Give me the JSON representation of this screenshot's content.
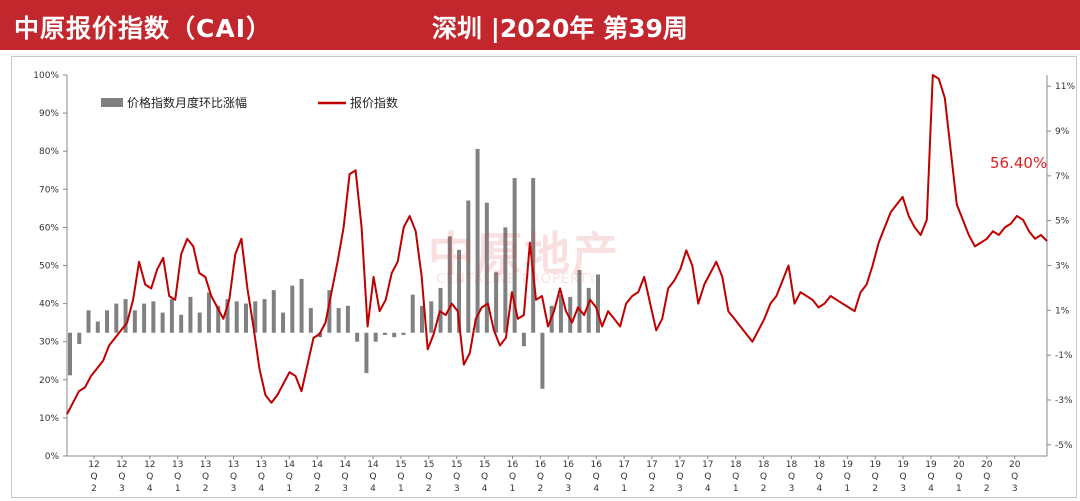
{
  "header": {
    "title": "中原报价指数（CAI）",
    "subtitle": "深圳 |2020年  第39周",
    "color": "#c1272d"
  },
  "watermark": {
    "text": "中原地产",
    "sub": "CENTALINE PROPERTY"
  },
  "chart_data": {
    "type": "bar+line",
    "legend": [
      "价格指数月度环比涨幅",
      "报价指数"
    ],
    "legend_position": "top-left",
    "annotation": "56.40%",
    "left_axis": {
      "ticks": [
        "0%",
        "10%",
        "20%",
        "30%",
        "40%",
        "50%",
        "60%",
        "70%",
        "80%",
        "90%",
        "100%"
      ],
      "ylim": [
        0,
        100
      ]
    },
    "right_axis": {
      "ticks": [
        "-5%",
        "-3%",
        "-1%",
        "1%",
        "3%",
        "5%",
        "7%",
        "9%",
        "11%"
      ],
      "ylim": [
        -5.5,
        11.5
      ]
    },
    "x_labels": [
      [
        "12",
        "Q",
        "2"
      ],
      [
        "12",
        "Q",
        "3"
      ],
      [
        "12",
        "Q",
        "4"
      ],
      [
        "13",
        "Q",
        "1"
      ],
      [
        "13",
        "Q",
        "2"
      ],
      [
        "13",
        "Q",
        "3"
      ],
      [
        "13",
        "Q",
        "4"
      ],
      [
        "14",
        "Q",
        "1"
      ],
      [
        "14",
        "Q",
        "2"
      ],
      [
        "14",
        "Q",
        "3"
      ],
      [
        "14",
        "Q",
        "4"
      ],
      [
        "15",
        "Q",
        "1"
      ],
      [
        "15",
        "Q",
        "2"
      ],
      [
        "15",
        "Q",
        "3"
      ],
      [
        "15",
        "Q",
        "4"
      ],
      [
        "16",
        "Q",
        "1"
      ],
      [
        "16",
        "Q",
        "2"
      ],
      [
        "16",
        "Q",
        "3"
      ],
      [
        "16",
        "Q",
        "4"
      ],
      [
        "17",
        "Q",
        "1"
      ],
      [
        "17",
        "Q",
        "2"
      ],
      [
        "17",
        "Q",
        "3"
      ],
      [
        "17",
        "Q",
        "4"
      ],
      [
        "18",
        "Q",
        "1"
      ],
      [
        "18",
        "Q",
        "2"
      ],
      [
        "18",
        "Q",
        "3"
      ],
      [
        "18",
        "Q",
        "4"
      ],
      [
        "19",
        "Q",
        "1"
      ],
      [
        "19",
        "Q",
        "2"
      ],
      [
        "19",
        "Q",
        "3"
      ],
      [
        "19",
        "Q",
        "4"
      ],
      [
        "20",
        "Q",
        "1"
      ],
      [
        "20",
        "Q",
        "2"
      ],
      [
        "20",
        "Q",
        "3"
      ]
    ],
    "bars": {
      "name": "价格指数月度环比涨幅",
      "color": "#808080",
      "axis": "right",
      "values": [
        -1.9,
        -0.5,
        1.0,
        0.5,
        1.0,
        1.3,
        1.5,
        1.0,
        1.3,
        1.4,
        0.9,
        1.5,
        0.8,
        1.6,
        0.9,
        1.8,
        1.2,
        1.5,
        1.4,
        1.3,
        1.4,
        1.5,
        1.9,
        0.9,
        2.1,
        2.4,
        1.1,
        -0.2,
        1.9,
        1.1,
        1.2,
        -0.4,
        -1.8,
        -0.4,
        -0.1,
        -0.2,
        -0.1,
        1.7,
        1.2,
        1.4,
        2.0,
        4.3,
        3.7,
        5.9,
        8.2,
        5.8,
        2.7,
        4.7,
        6.9,
        -0.6,
        6.9,
        -2.5,
        1.2,
        1.7,
        1.6,
        2.8,
        2.0,
        2.6
      ]
    },
    "line": {
      "name": "报价指数",
      "color": "#c00000",
      "axis": "left",
      "values": [
        11,
        14,
        17,
        18,
        21,
        23,
        25,
        29,
        31,
        33,
        35,
        41,
        51,
        45,
        44,
        49,
        52,
        42,
        41,
        53,
        57,
        55,
        48,
        47,
        42,
        39,
        36,
        41,
        53,
        57,
        44,
        34,
        23,
        16,
        14,
        16,
        19,
        22,
        21,
        17,
        24,
        31,
        32,
        35,
        43,
        51,
        60,
        74,
        75,
        60,
        34,
        47,
        38,
        41,
        48,
        51,
        60,
        63,
        59,
        47,
        28,
        32,
        38,
        37,
        40,
        38,
        24,
        27,
        36,
        39,
        40,
        33,
        29,
        31,
        43,
        36,
        37,
        56,
        41,
        42,
        34,
        38,
        44,
        38,
        35,
        39,
        37,
        41,
        39,
        34,
        38,
        36,
        34,
        40,
        42,
        43,
        47,
        40,
        33,
        36,
        44,
        46,
        49,
        54,
        50,
        40,
        45,
        48,
        51,
        47,
        38,
        36,
        34,
        32,
        30,
        33,
        36,
        40,
        42,
        46,
        50,
        40,
        43,
        42,
        41,
        39,
        40,
        42,
        41,
        40,
        39,
        38,
        43,
        45,
        50,
        56,
        60,
        64,
        66,
        68,
        63,
        60,
        58,
        62,
        100,
        99,
        94,
        80,
        66,
        62,
        58,
        55,
        56,
        57,
        59,
        58,
        60,
        61,
        63,
        62,
        59,
        57,
        58,
        56.4
      ]
    }
  }
}
